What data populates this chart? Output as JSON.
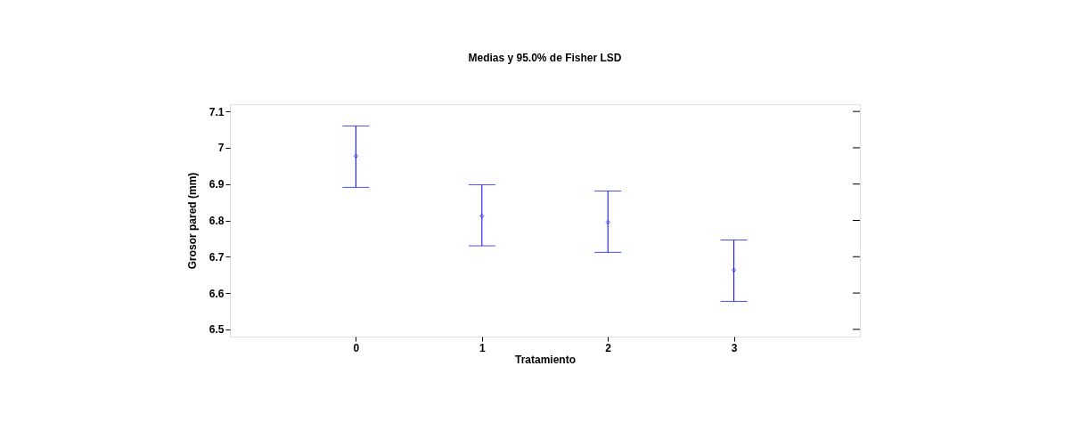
{
  "chart_data": {
    "type": "scatter",
    "title": "Medias y 95.0% de Fisher LSD",
    "xlabel": "Tratamiento",
    "ylabel": "Grosor pared (mm)",
    "categories": [
      "0",
      "1",
      "2",
      "3"
    ],
    "series": [
      {
        "color": "#0000ff",
        "values": [
          6.977,
          6.812,
          6.795,
          6.663
        ],
        "errors": [
          [
            6.891,
            7.06
          ],
          [
            6.73,
            6.898
          ],
          [
            6.712,
            6.881
          ],
          [
            6.577,
            6.746
          ]
        ]
      }
    ],
    "ylim": [
      6.48,
      7.12
    ],
    "yticks": [
      6.5,
      6.6,
      6.7,
      6.8,
      6.9,
      7,
      7.1
    ],
    "grid": false,
    "marker": "diamond"
  }
}
